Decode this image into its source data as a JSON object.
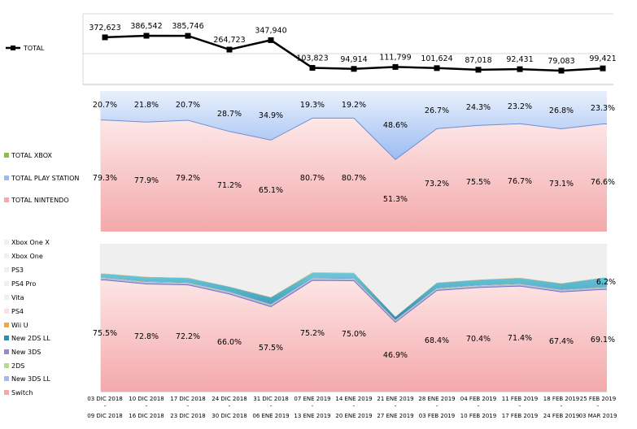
{
  "chart_data": {
    "type": "composite",
    "dates_start": [
      "03 DIC 2018",
      "10 DIC 2018",
      "17 DIC 2018",
      "24 DIC 2018",
      "31 DIC 2018",
      "07 ENE 2019",
      "14 ENE 2019",
      "21 ENE 2019",
      "28 ENE 2019",
      "04 FEB 2019",
      "11 FEB 2019",
      "18 FEB 2019",
      "25 FEB 2019"
    ],
    "dates_end": [
      "09 DIC 2018",
      "16 DIC 2018",
      "23 DIC 2018",
      "30 DIC 2018",
      "06 ENE 2019",
      "13 ENE 2019",
      "20 ENE 2019",
      "27 ENE 2019",
      "03 FEB 2019",
      "10 FEB 2019",
      "17 FEB 2019",
      "24 FEB 2019",
      "03 MAR 2019"
    ],
    "date_separator": "-",
    "total": {
      "type": "line",
      "legend": "TOTAL",
      "values": [
        372623,
        386542,
        385746,
        264723,
        347940,
        103823,
        94914,
        111799,
        101624,
        87018,
        92431,
        79083,
        99421
      ],
      "labels": [
        "372,623",
        "386,542",
        "385,746",
        "264,723",
        "347,940",
        "103,823",
        "94,914",
        "111,799",
        "101,624",
        "87,018",
        "92,431",
        "79,083",
        "99,421"
      ]
    },
    "platform_share": {
      "type": "area",
      "stacked_percent": true,
      "legend": [
        "TOTAL XBOX",
        "TOTAL PLAY STATION",
        "TOTAL NINTENDO"
      ],
      "series": [
        {
          "name": "TOTAL XBOX",
          "values": [
            0,
            0,
            0,
            0,
            0,
            0,
            0,
            0,
            0,
            0,
            0,
            0,
            0
          ]
        },
        {
          "name": "TOTAL PLAY STATION",
          "values": [
            20.7,
            21.8,
            20.7,
            28.7,
            34.9,
            19.3,
            19.2,
            48.6,
            26.7,
            24.3,
            23.2,
            26.8,
            23.3
          ],
          "labels": [
            "20.7%",
            "21.8%",
            "20.7%",
            "28.7%",
            "34.9%",
            "19.3%",
            "19.2%",
            "48.6%",
            "26.7%",
            "24.3%",
            "23.2%",
            "26.8%",
            "23.3%"
          ]
        },
        {
          "name": "TOTAL NINTENDO",
          "values": [
            79.3,
            77.9,
            79.2,
            71.2,
            65.1,
            80.7,
            80.7,
            51.3,
            73.2,
            75.5,
            76.7,
            73.1,
            76.6
          ],
          "labels": [
            "79.3%",
            "77.9%",
            "79.2%",
            "71.2%",
            "65.1%",
            "80.7%",
            "80.7%",
            "51.3%",
            "73.2%",
            "75.5%",
            "76.7%",
            "73.1%",
            "76.6%"
          ]
        }
      ]
    },
    "model_share": {
      "type": "area",
      "stacked_percent": true,
      "legend": [
        "Xbox One X",
        "Xbox One",
        "PS3",
        "PS4 Pro",
        "Vita",
        "PS4",
        "Wii U",
        "New 2DS LL",
        "New 3DS",
        "2DS",
        "New 3DS LL",
        "Switch"
      ],
      "switch": {
        "values": [
          75.5,
          72.8,
          72.2,
          66.0,
          57.5,
          75.2,
          75.0,
          46.9,
          68.4,
          70.4,
          71.4,
          67.4,
          69.1
        ],
        "labels": [
          "75.5%",
          "72.8%",
          "72.2%",
          "66.0%",
          "57.5%",
          "75.2%",
          "75.0%",
          "46.9%",
          "68.4%",
          "70.4%",
          "71.4%",
          "67.4%",
          "69.1%"
        ]
      },
      "new_3ds_ll": [
        1.0,
        1.0,
        1.0,
        1.0,
        1.0,
        1.0,
        1.0,
        1.0,
        1.0,
        1.0,
        1.0,
        1.0,
        1.0
      ],
      "two_ds": [
        0.3,
        0.3,
        0.3,
        0.3,
        0.3,
        0.3,
        0.3,
        0.3,
        0.3,
        0.3,
        0.3,
        0.3,
        0.3
      ],
      "new_3ds": [
        0.3,
        0.3,
        0.3,
        0.3,
        0.3,
        0.3,
        0.3,
        0.3,
        0.3,
        0.3,
        0.3,
        0.3,
        0.3
      ],
      "new_2ds_ll": [
        2.5,
        3.0,
        3.0,
        3.2,
        4.5,
        3.5,
        3.5,
        2.0,
        3.5,
        3.5,
        3.8,
        4.0,
        6.2
      ],
      "new_2ds_ll_label_last": "6.2%",
      "wii_u": [
        0.2,
        0.2,
        0.2,
        0.2,
        0.3,
        0.3,
        0.3,
        0.2,
        0.2,
        0.2,
        0.2,
        0.2,
        0.2
      ]
    }
  },
  "colors": {
    "total_line": "#000000",
    "nintendo_fill": "#f4a9ab",
    "nintendo_fill_light": "#fde8e8",
    "playstation_fill": "#9bbcf3",
    "playstation_fill_light": "#e9f0fc",
    "xbox_fill": "#8bbd4a",
    "switch_fill": "#f4a9ab",
    "switch_fill_light": "#fde5e5",
    "n3dsll_fill": "#aab8e8",
    "twods_fill": "#bcd88c",
    "n3ds_fill": "#9888c8",
    "n2dsll_fill": "#3ea6c0",
    "wiiu_fill": "#f2a64a",
    "ps4_fill": "#f4dede",
    "rest_fill": "#efefef"
  }
}
